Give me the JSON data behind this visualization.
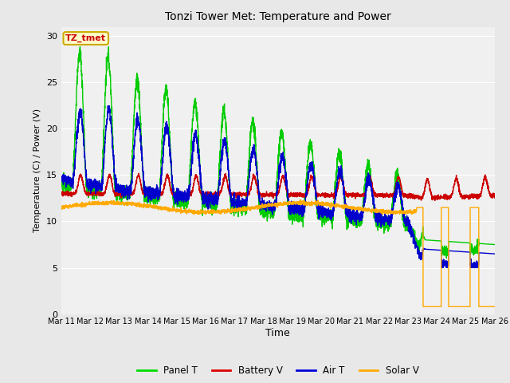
{
  "title": "Tonzi Tower Met: Temperature and Power",
  "xlabel": "Time",
  "ylabel": "Temperature (C) / Power (V)",
  "annotation_text": "TZ_tmet",
  "annotation_color": "#cc0000",
  "annotation_bg": "#ffffcc",
  "annotation_border": "#ccaa00",
  "ylim": [
    0,
    31
  ],
  "yticks": [
    0,
    5,
    10,
    15,
    20,
    25,
    30
  ],
  "fig_bg": "#e8e8e8",
  "plot_bg": "#e8e8e8",
  "inner_bg": "#f0f0f0",
  "legend_labels": [
    "Panel T",
    "Battery V",
    "Air T",
    "Solar V"
  ],
  "legend_colors": [
    "#00dd00",
    "#dd0000",
    "#0000dd",
    "#ffaa00"
  ],
  "line_colors": {
    "panel_t": "#00cc00",
    "battery_v": "#cc0000",
    "air_t": "#0000cc",
    "solar_v": "#ffaa00"
  },
  "x_tick_labels": [
    "Mar 11",
    "Mar 12",
    "Mar 13",
    "Mar 14",
    "Mar 15",
    "Mar 16",
    "Mar 17",
    "Mar 18",
    "Mar 19",
    "Mar 20",
    "Mar 21",
    "Mar 22",
    "Mar 23",
    "Mar 24",
    "Mar 25",
    "Mar 26"
  ],
  "n_points": 3750
}
